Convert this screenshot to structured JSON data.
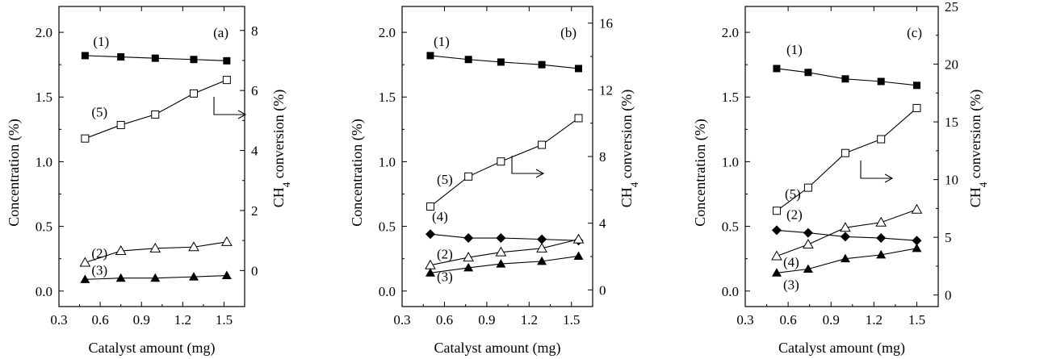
{
  "chart_data": [
    {
      "type": "line",
      "panel_label": "(a)",
      "xlabel": "Catalyst amount (mg)",
      "ylabel_left": "Concentration (%)",
      "ylabel_right": "CH4 conversion (%)",
      "xlim": [
        0.3,
        1.65
      ],
      "xticks": [
        "0.3",
        "0.6",
        "0.9",
        "1.2",
        "1.5"
      ],
      "ylim_left": [
        -0.12,
        2.2
      ],
      "yticks_left": [
        "0.0",
        "0.5",
        "1.0",
        "1.5",
        "2.0"
      ],
      "ylim_right": [
        -1.2,
        8.8
      ],
      "yticks_right": [
        "0",
        "2",
        "4",
        "6",
        "8"
      ],
      "x": [
        0.49,
        0.75,
        1.0,
        1.28,
        1.52
      ],
      "series": [
        {
          "name": "(1)",
          "axis": "left",
          "marker": "filled-square",
          "values": [
            1.82,
            1.81,
            1.8,
            1.79,
            1.78
          ]
        },
        {
          "name": "(5)",
          "axis": "right",
          "marker": "open-square",
          "values": [
            4.4,
            4.85,
            5.2,
            5.9,
            6.35
          ]
        },
        {
          "name": "(2)",
          "axis": "left",
          "marker": "open-triangle",
          "values": [
            0.22,
            0.31,
            0.33,
            0.34,
            0.38
          ]
        },
        {
          "name": "(3)",
          "axis": "left",
          "marker": "filled-triangle",
          "values": [
            0.09,
            0.1,
            0.1,
            0.11,
            0.12
          ]
        }
      ]
    },
    {
      "type": "line",
      "panel_label": "(b)",
      "xlabel": "Catalyst amount (mg)",
      "ylabel_left": "Concentration (%)",
      "ylabel_right": "CH4 conversion (%)",
      "xlim": [
        0.3,
        1.65
      ],
      "xticks": [
        "0.3",
        "0.6",
        "0.9",
        "1.2",
        "1.5"
      ],
      "ylim_left": [
        -0.12,
        2.2
      ],
      "yticks_left": [
        "0.0",
        "0.5",
        "1.0",
        "1.5",
        "2.0"
      ],
      "ylim_right": [
        -1.0,
        17.0
      ],
      "yticks_right": [
        "0",
        "4",
        "8",
        "12",
        "16"
      ],
      "x": [
        0.5,
        0.77,
        1.0,
        1.29,
        1.55
      ],
      "series": [
        {
          "name": "(1)",
          "axis": "left",
          "marker": "filled-square",
          "values": [
            1.82,
            1.79,
            1.77,
            1.75,
            1.72
          ]
        },
        {
          "name": "(5)",
          "axis": "right",
          "marker": "open-square",
          "values": [
            5.0,
            6.8,
            7.7,
            8.7,
            10.3
          ]
        },
        {
          "name": "(4)",
          "axis": "left",
          "marker": "filled-diamond",
          "values": [
            0.44,
            0.41,
            0.41,
            0.4,
            0.39
          ]
        },
        {
          "name": "(2)",
          "axis": "left",
          "marker": "open-triangle",
          "values": [
            0.2,
            0.26,
            0.3,
            0.33,
            0.4
          ]
        },
        {
          "name": "(3)",
          "axis": "left",
          "marker": "filled-triangle",
          "values": [
            0.14,
            0.18,
            0.21,
            0.23,
            0.27
          ]
        }
      ]
    },
    {
      "type": "line",
      "panel_label": "(c)",
      "xlabel": "Catalyst amount (mg)",
      "ylabel_left": "Concentration (%)",
      "ylabel_right": "CH4 conversion (%)",
      "xlim": [
        0.3,
        1.65
      ],
      "xticks": [
        "0.3",
        "0.6",
        "0.9",
        "1.2",
        "1.5"
      ],
      "ylim_left": [
        -0.12,
        2.2
      ],
      "yticks_left": [
        "0.0",
        "0.5",
        "1.0",
        "1.5",
        "2.0"
      ],
      "ylim_right": [
        -1.0,
        25.0
      ],
      "yticks_right": [
        "0",
        "5",
        "10",
        "15",
        "20",
        "25"
      ],
      "x": [
        0.52,
        0.74,
        1.0,
        1.25,
        1.5
      ],
      "series": [
        {
          "name": "(1)",
          "axis": "left",
          "marker": "filled-square",
          "values": [
            1.72,
            1.69,
            1.64,
            1.62,
            1.59
          ]
        },
        {
          "name": "(5)",
          "axis": "right",
          "marker": "open-square",
          "values": [
            7.3,
            9.3,
            12.3,
            13.5,
            16.2
          ]
        },
        {
          "name": "(2)",
          "axis": "left",
          "marker": "filled-diamond",
          "values": [
            0.47,
            0.45,
            0.42,
            0.41,
            0.39
          ]
        },
        {
          "name": "(4)",
          "axis": "left",
          "marker": "open-triangle",
          "values": [
            0.27,
            0.36,
            0.49,
            0.53,
            0.63
          ]
        },
        {
          "name": "(3)",
          "axis": "left",
          "marker": "filled-triangle",
          "values": [
            0.14,
            0.17,
            0.25,
            0.28,
            0.33
          ]
        }
      ]
    }
  ]
}
